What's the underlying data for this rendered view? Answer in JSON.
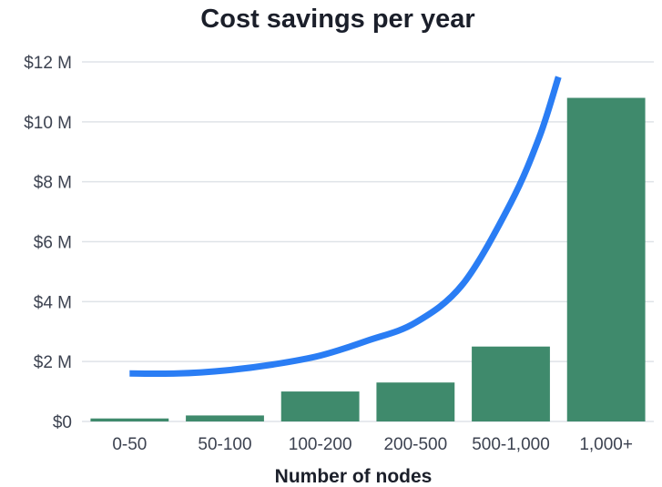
{
  "chart_data": {
    "type": "bar",
    "title": "Cost savings per year",
    "xlabel": "Number of nodes",
    "ylabel": "",
    "ylim": [
      0,
      12
    ],
    "y_ticks": [
      {
        "value": 0,
        "label": "$0"
      },
      {
        "value": 2,
        "label": "$2 M"
      },
      {
        "value": 4,
        "label": "$4 M"
      },
      {
        "value": 6,
        "label": "$6 M"
      },
      {
        "value": 8,
        "label": "$8 M"
      },
      {
        "value": 10,
        "label": "$10 M"
      },
      {
        "value": 12,
        "label": "$12 M"
      }
    ],
    "grid": true,
    "legend": "none",
    "categories": [
      "0-50",
      "50-100",
      "100-200",
      "200-500",
      "500-1,000",
      "1,000+"
    ],
    "series": [
      {
        "type": "bar",
        "color": "#3f8a6c",
        "values": [
          0.1,
          0.2,
          1.0,
          1.3,
          2.5,
          10.8
        ]
      },
      {
        "type": "line",
        "color": "#2a7df4",
        "curve": "smooth",
        "x": [
          0,
          0.5,
          1,
          1.5,
          2,
          2.5,
          3,
          3.5,
          4,
          4.3,
          4.5
        ],
        "values": [
          1.6,
          1.6,
          1.7,
          1.9,
          2.2,
          2.7,
          3.3,
          4.6,
          7.3,
          9.5,
          11.5
        ]
      }
    ]
  }
}
